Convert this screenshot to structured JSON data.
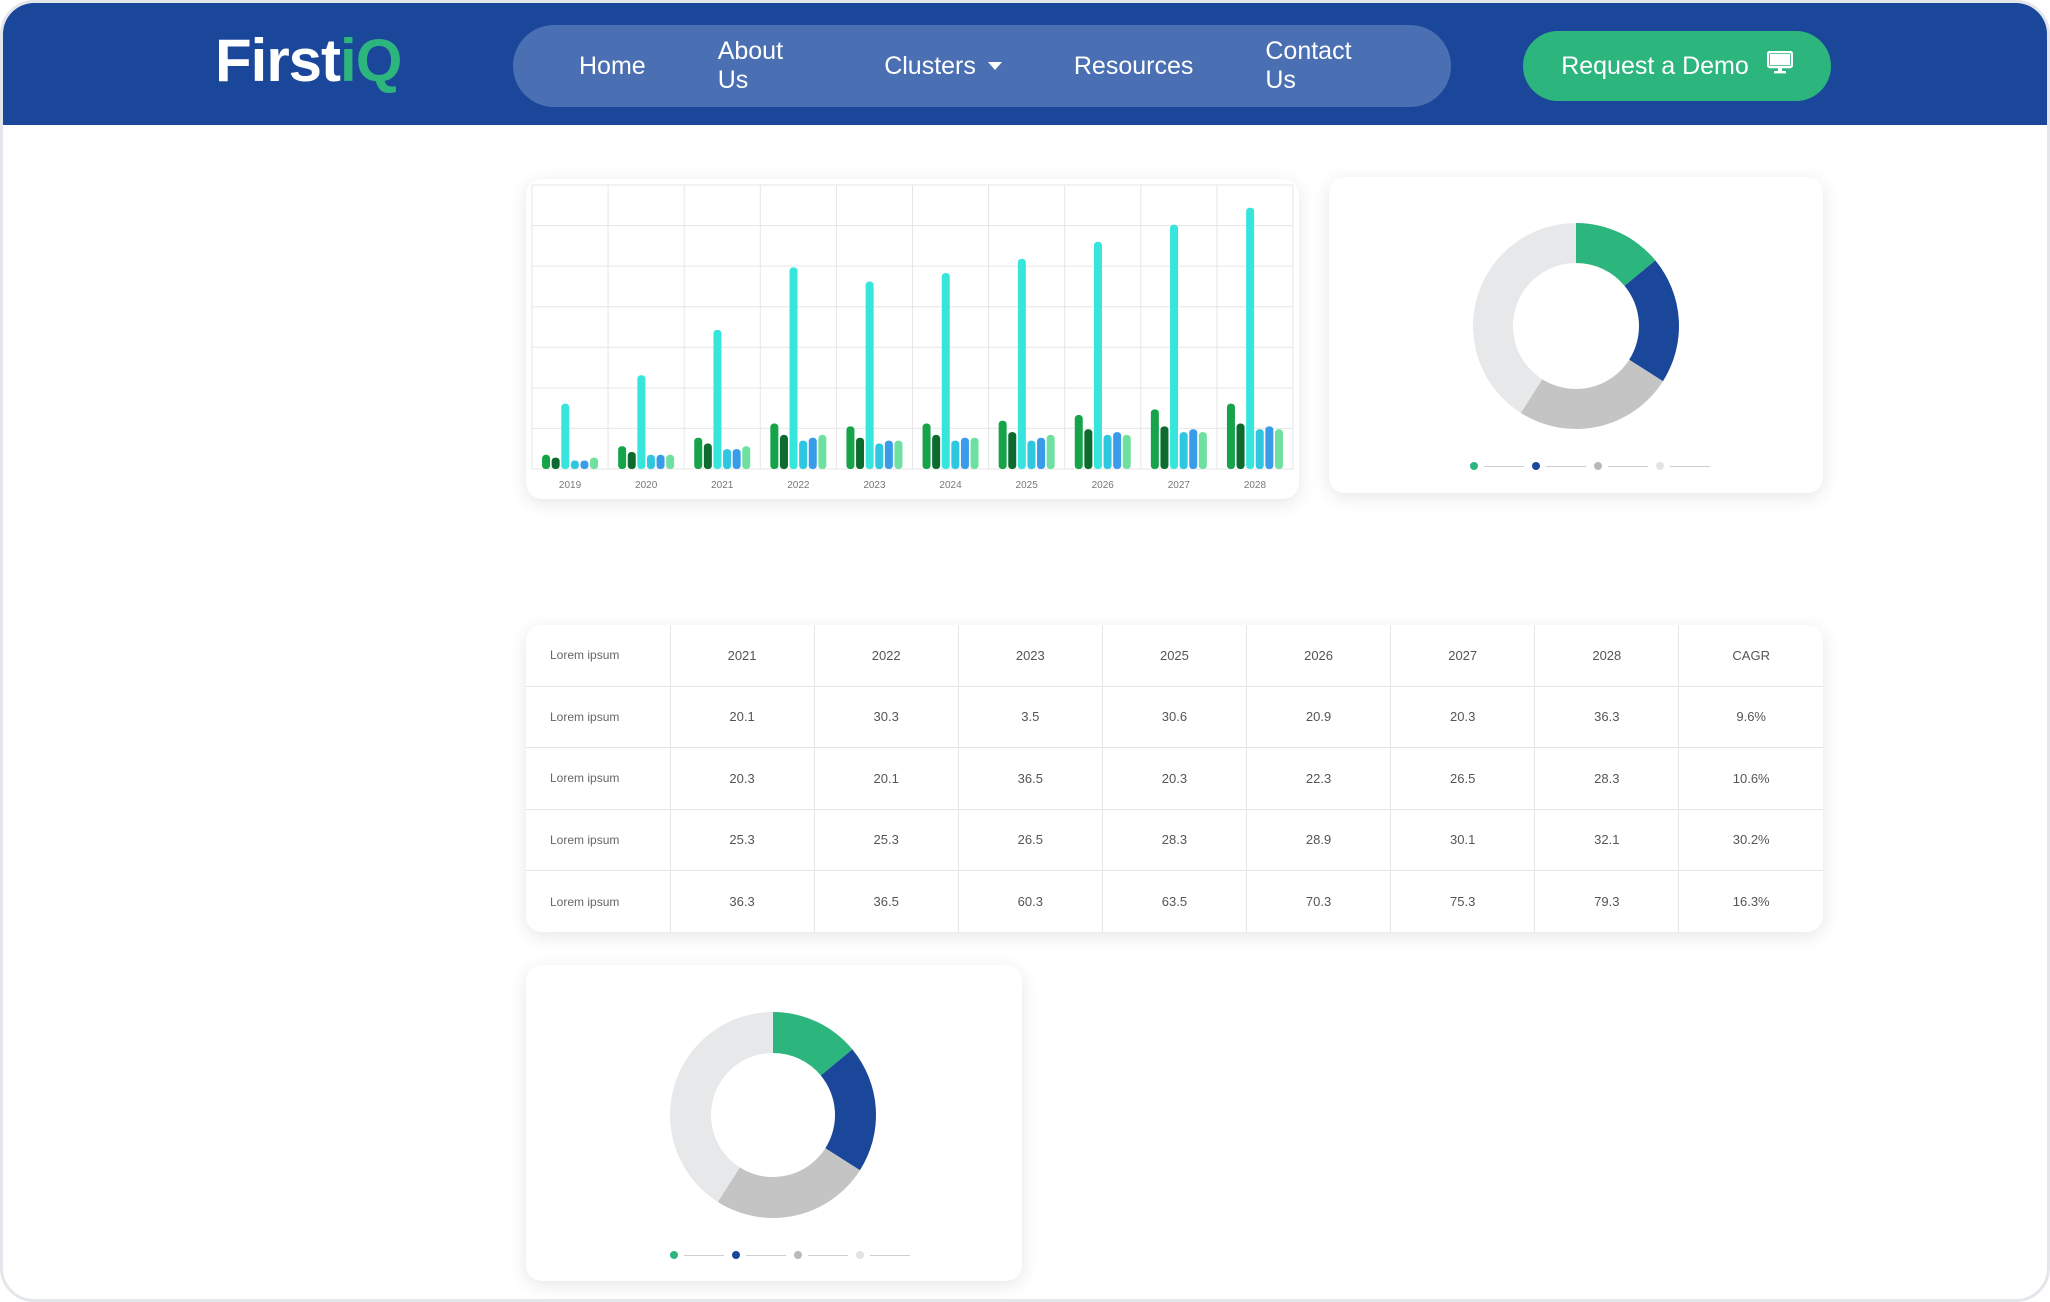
{
  "brand": {
    "logo_main": "First",
    "logo_accent": "iQ"
  },
  "nav": {
    "items": [
      {
        "label": "Home"
      },
      {
        "label": "About Us"
      },
      {
        "label": "Clusters"
      },
      {
        "label": "Resources"
      },
      {
        "label": "Contact Us"
      }
    ],
    "cta_label": "Request a Demo"
  },
  "colors": {
    "nav_bg": "#1b479b",
    "nav_pill": "#4a6fb3",
    "accent_green": "#2cb67d",
    "navy": "#1b479b",
    "grey": "#c4c4c4",
    "light_grey": "#e7e8e9"
  },
  "icons": {
    "cta_icon": "monitor-icon",
    "dropdown": "caret-down-icon"
  },
  "chart_data": [
    {
      "type": "bar",
      "categories": [
        "2019",
        "2020",
        "2021",
        "2022",
        "2023",
        "2024",
        "2025",
        "2026",
        "2027",
        "2028"
      ],
      "ylim": [
        0,
        100
      ],
      "series": [
        {
          "color": "#16a34a",
          "values": [
            5,
            8,
            11,
            16,
            15,
            16,
            17,
            19,
            21,
            23
          ]
        },
        {
          "color": "#0d6b2f",
          "values": [
            4,
            6,
            9,
            12,
            11,
            12,
            13,
            14,
            15,
            16
          ]
        },
        {
          "color": "#36e6dc",
          "values": [
            23,
            33,
            49,
            71,
            66,
            69,
            74,
            80,
            86,
            92
          ]
        },
        {
          "color": "#2fc7e0",
          "values": [
            3,
            5,
            7,
            10,
            9,
            10,
            10,
            12,
            13,
            14
          ]
        },
        {
          "color": "#3a9ce8",
          "values": [
            3,
            5,
            7,
            11,
            10,
            11,
            11,
            13,
            14,
            15
          ]
        },
        {
          "color": "#6ee0a0",
          "values": [
            4,
            5,
            8,
            12,
            10,
            11,
            12,
            12,
            13,
            14
          ]
        }
      ]
    },
    {
      "type": "pie",
      "slices": [
        {
          "value": 14,
          "color": "#2cb67d"
        },
        {
          "value": 20,
          "color": "#1b479b"
        },
        {
          "value": 25,
          "color": "#c4c4c4"
        },
        {
          "value": 41,
          "color": "#e7e8e9"
        }
      ]
    },
    {
      "type": "pie",
      "slices": [
        {
          "value": 14,
          "color": "#2cb67d"
        },
        {
          "value": 20,
          "color": "#1b479b"
        },
        {
          "value": 25,
          "color": "#c4c4c4"
        },
        {
          "value": 41,
          "color": "#e7e8e9"
        }
      ]
    },
    {
      "type": "table",
      "headers": [
        "Lorem ipsum",
        "2021",
        "2022",
        "2023",
        "2025",
        "2026",
        "2027",
        "2028",
        "CAGR"
      ],
      "rows": [
        [
          "Lorem ipsum",
          "20.1",
          "30.3",
          "3.5",
          "30.6",
          "20.9",
          "20.3",
          "36.3",
          "9.6%"
        ],
        [
          "Lorem ipsum",
          "20.3",
          "20.1",
          "36.5",
          "20.3",
          "22.3",
          "26.5",
          "28.3",
          "10.6%"
        ],
        [
          "Lorem ipsum",
          "25.3",
          "25.3",
          "26.5",
          "28.3",
          "28.9",
          "30.1",
          "32.1",
          "30.2%"
        ],
        [
          "Lorem ipsum",
          "36.3",
          "36.5",
          "60.3",
          "63.5",
          "70.3",
          "75.3",
          "79.3",
          "16.3%"
        ]
      ]
    }
  ]
}
